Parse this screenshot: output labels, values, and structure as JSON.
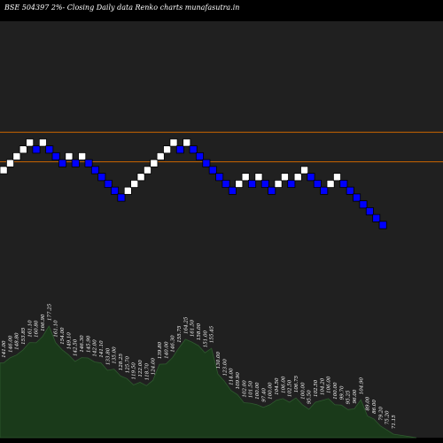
{
  "chart_data": {
    "type": "renko",
    "title": "BSE 504397 2%-  Closing Daily data  Renko  charts munafasutra.in",
    "colors": {
      "background": "#000000",
      "plot_background": "#202020",
      "up_brick": "#ffffff",
      "down_brick": "#0000ff",
      "brick_outline": "#000000",
      "reference_line": "#cc6600",
      "area_fill": "#1a3a1a",
      "area_edge": "#2f5a2f",
      "label_text": "#ffffff"
    },
    "bricks": [
      {
        "dir": "up",
        "level": 0
      },
      {
        "dir": "up",
        "level": 1
      },
      {
        "dir": "up",
        "level": 2
      },
      {
        "dir": "up",
        "level": 3
      },
      {
        "dir": "up",
        "level": 4
      },
      {
        "dir": "down",
        "level": 3
      },
      {
        "dir": "up",
        "level": 4
      },
      {
        "dir": "down",
        "level": 3
      },
      {
        "dir": "down",
        "level": 2
      },
      {
        "dir": "down",
        "level": 1
      },
      {
        "dir": "up",
        "level": 2
      },
      {
        "dir": "down",
        "level": 1
      },
      {
        "dir": "up",
        "level": 2
      },
      {
        "dir": "down",
        "level": 1
      },
      {
        "dir": "down",
        "level": 0
      },
      {
        "dir": "down",
        "level": -1
      },
      {
        "dir": "down",
        "level": -2
      },
      {
        "dir": "down",
        "level": -3
      },
      {
        "dir": "down",
        "level": -4
      },
      {
        "dir": "up",
        "level": -3
      },
      {
        "dir": "up",
        "level": -2
      },
      {
        "dir": "up",
        "level": -1
      },
      {
        "dir": "up",
        "level": 0
      },
      {
        "dir": "up",
        "level": 1
      },
      {
        "dir": "up",
        "level": 2
      },
      {
        "dir": "up",
        "level": 3
      },
      {
        "dir": "up",
        "level": 4
      },
      {
        "dir": "down",
        "level": 3
      },
      {
        "dir": "up",
        "level": 4
      },
      {
        "dir": "down",
        "level": 3
      },
      {
        "dir": "down",
        "level": 2
      },
      {
        "dir": "down",
        "level": 1
      },
      {
        "dir": "down",
        "level": 0
      },
      {
        "dir": "down",
        "level": -1
      },
      {
        "dir": "down",
        "level": -2
      },
      {
        "dir": "down",
        "level": -3
      },
      {
        "dir": "up",
        "level": -2
      },
      {
        "dir": "up",
        "level": -1
      },
      {
        "dir": "down",
        "level": -2
      },
      {
        "dir": "up",
        "level": -1
      },
      {
        "dir": "down",
        "level": -2
      },
      {
        "dir": "down",
        "level": -3
      },
      {
        "dir": "up",
        "level": -2
      },
      {
        "dir": "up",
        "level": -1
      },
      {
        "dir": "down",
        "level": -2
      },
      {
        "dir": "up",
        "level": -1
      },
      {
        "dir": "up",
        "level": 0
      },
      {
        "dir": "down",
        "level": -1
      },
      {
        "dir": "down",
        "level": -2
      },
      {
        "dir": "down",
        "level": -3
      },
      {
        "dir": "up",
        "level": -2
      },
      {
        "dir": "up",
        "level": -1
      },
      {
        "dir": "down",
        "level": -2
      },
      {
        "dir": "down",
        "level": -3
      },
      {
        "dir": "down",
        "level": -4
      },
      {
        "dir": "down",
        "level": -5
      },
      {
        "dir": "down",
        "level": -6
      },
      {
        "dir": "down",
        "level": -7
      },
      {
        "dir": "down",
        "level": -8
      }
    ],
    "reference_levels": [
      5.5,
      1.2
    ],
    "value_labels": [
      "141.00",
      "146.00",
      "148.80",
      "153.85",
      "161.10",
      "160.80",
      "166.90",
      "177.25",
      "161.10",
      "154.00",
      "149.10",
      "142.50",
      "146.30",
      "145.90",
      "142.00",
      "141.10",
      "133.80",
      "135.00",
      "128.25",
      "125.70",
      "119.50",
      "122.00",
      "118.70",
      "124.00",
      "139.80",
      "140.00",
      "146.30",
      "155.75",
      "164.25",
      "161.50",
      "158.00",
      "151.00",
      "155.45",
      "130.00",
      "123.00",
      "114.00",
      "109.90",
      "102.00",
      "101.50",
      "100.00",
      "97.40",
      "100.00",
      "104.50",
      "106.00",
      "102.50",
      "106.75",
      "100.00",
      "95.50",
      "102.50",
      "104.20",
      "106.00",
      "100.00",
      "99.70",
      "95.25",
      "96.00",
      "104.90",
      "89.00",
      "86.00",
      "79.20",
      "75.20",
      "71.15"
    ]
  }
}
